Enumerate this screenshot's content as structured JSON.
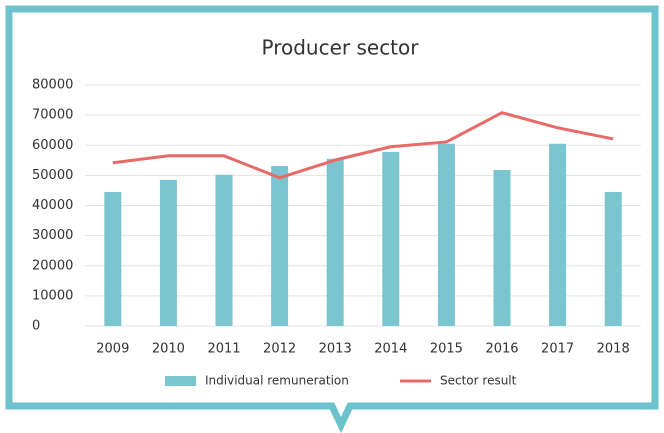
{
  "chart_data": {
    "type": "bar_line",
    "title": "Producer sector",
    "categories": [
      "2009",
      "2010",
      "2011",
      "2012",
      "2013",
      "2014",
      "2015",
      "2016",
      "2017",
      "2018"
    ],
    "series": [
      {
        "name": "Individual remuneration",
        "type": "bar",
        "color": "#7ac5cf",
        "values": [
          44500,
          48500,
          50200,
          53100,
          55500,
          57800,
          60500,
          51800,
          60500,
          44500
        ]
      },
      {
        "name": "Sector result",
        "type": "line",
        "color": "#e86a67",
        "values": [
          54200,
          56500,
          56500,
          49200,
          55100,
          59500,
          61100,
          70800,
          65800,
          62100
        ]
      }
    ],
    "ylim": [
      0,
      80000
    ],
    "yticks": [
      0,
      10000,
      20000,
      30000,
      40000,
      50000,
      60000,
      70000,
      80000
    ],
    "grid": true,
    "legend": "bottom"
  }
}
